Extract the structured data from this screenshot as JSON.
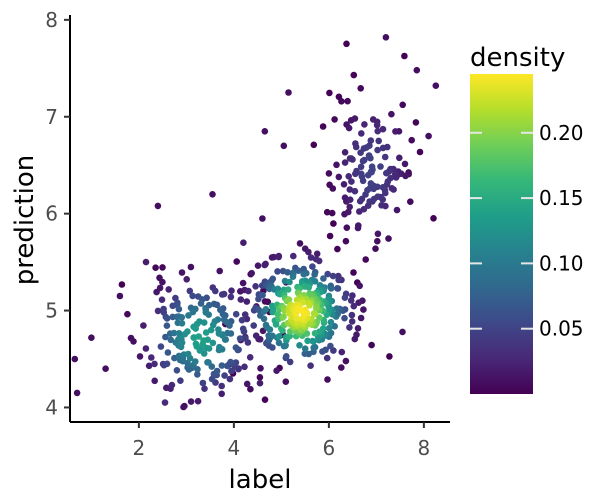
{
  "chart_data": {
    "type": "scatter",
    "title": "",
    "xlabel": "label",
    "ylabel": "prediction",
    "xlim": [
      0.55,
      8.55
    ],
    "ylim": [
      3.85,
      8.05
    ],
    "xticks": [
      2,
      4,
      6,
      8
    ],
    "yticks": [
      4,
      5,
      6,
      7,
      8
    ],
    "xtick_labels": [
      "2",
      "4",
      "6",
      "8"
    ],
    "ytick_labels": [
      "4",
      "5",
      "6",
      "7",
      "8"
    ],
    "grid": false,
    "color_scale": {
      "name": "viridis",
      "title": "density",
      "range": [
        0.0,
        0.245
      ],
      "ticks": [
        0.05,
        0.1,
        0.15,
        0.2
      ],
      "tick_labels": [
        "0.05",
        "0.10",
        "0.15",
        "0.20"
      ],
      "colors": [
        "#440154",
        "#482878",
        "#3e4989",
        "#31688e",
        "#26828e",
        "#1f9e89",
        "#35b779",
        "#6ece58",
        "#b5de2b",
        "#fde725"
      ],
      "legend_position": "right"
    },
    "clusters": [
      {
        "cx": 3.3,
        "cy": 4.72,
        "sx": 0.62,
        "sy": 0.32,
        "n": 210,
        "peak": 0.14,
        "seed": 11
      },
      {
        "cx": 5.4,
        "cy": 4.98,
        "sx": 0.55,
        "sy": 0.28,
        "n": 320,
        "peak": 0.245,
        "seed": 23
      },
      {
        "cx": 6.9,
        "cy": 6.45,
        "sx": 0.45,
        "sy": 0.42,
        "n": 140,
        "peak": 0.05,
        "seed": 37
      }
    ],
    "points": [
      {
        "x": 0.65,
        "y": 4.5,
        "density": 0.01
      },
      {
        "x": 0.7,
        "y": 4.15,
        "density": 0.01
      },
      {
        "x": 2.4,
        "y": 6.08,
        "density": 0.01
      },
      {
        "x": 3.55,
        "y": 6.2,
        "density": 0.01
      },
      {
        "x": 7.2,
        "y": 7.82,
        "density": 0.01
      },
      {
        "x": 7.85,
        "y": 7.48,
        "density": 0.01
      },
      {
        "x": 8.25,
        "y": 7.32,
        "density": 0.01
      },
      {
        "x": 5.15,
        "y": 7.25,
        "density": 0.01
      },
      {
        "x": 8.1,
        "y": 6.8,
        "density": 0.01
      },
      {
        "x": 7.55,
        "y": 4.78,
        "density": 0.01
      },
      {
        "x": 1.0,
        "y": 4.72,
        "density": 0.01
      },
      {
        "x": 1.3,
        "y": 4.4,
        "density": 0.01
      },
      {
        "x": 1.6,
        "y": 5.15,
        "density": 0.01
      },
      {
        "x": 2.15,
        "y": 5.5,
        "density": 0.02
      },
      {
        "x": 2.55,
        "y": 4.05,
        "density": 0.03
      },
      {
        "x": 4.55,
        "y": 4.25,
        "density": 0.02
      },
      {
        "x": 4.65,
        "y": 6.85,
        "density": 0.01
      },
      {
        "x": 5.05,
        "y": 6.7,
        "density": 0.01
      },
      {
        "x": 4.6,
        "y": 5.95,
        "density": 0.01
      },
      {
        "x": 4.2,
        "y": 5.7,
        "density": 0.02
      }
    ]
  }
}
